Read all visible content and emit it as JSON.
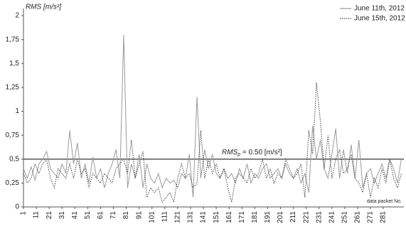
{
  "chart_data": {
    "type": "line",
    "ylabel": "RMS [m/s²]",
    "xlabel": "data packet No.",
    "x": [
      1,
      4,
      7,
      10,
      13,
      16,
      19,
      22,
      25,
      28,
      31,
      34,
      37,
      40,
      43,
      46,
      49,
      52,
      55,
      58,
      61,
      64,
      67,
      70,
      73,
      76,
      79,
      82,
      85,
      88,
      91,
      94,
      97,
      100,
      103,
      106,
      109,
      112,
      115,
      118,
      121,
      124,
      127,
      130,
      133,
      136,
      139,
      142,
      145,
      148,
      151,
      154,
      157,
      160,
      163,
      166,
      169,
      172,
      175,
      178,
      181,
      184,
      187,
      190,
      193,
      196,
      199,
      202,
      205,
      208,
      211,
      214,
      217,
      220,
      223,
      226,
      229,
      232,
      235,
      238,
      241,
      244,
      247,
      250,
      253,
      256,
      259,
      262,
      265,
      268,
      271,
      274,
      277,
      280,
      283,
      286,
      289,
      292,
      295
    ],
    "series": [
      {
        "name": "June 11th, 2012",
        "color": "#9a9a9a",
        "dash": "solid",
        "values": [
          0.4,
          0.3,
          0.42,
          0.28,
          0.45,
          0.5,
          0.58,
          0.4,
          0.35,
          0.3,
          0.45,
          0.35,
          0.8,
          0.45,
          0.67,
          0.3,
          0.45,
          0.25,
          0.52,
          0.3,
          0.4,
          0.2,
          0.35,
          0.45,
          0.6,
          0.3,
          1.8,
          0.2,
          0.45,
          0.3,
          0.55,
          0.2,
          0.45,
          0.3,
          0.25,
          0.35,
          0.2,
          0.3,
          0.25,
          0.28,
          0.2,
          0.35,
          0.3,
          0.55,
          0.1,
          1.15,
          0.3,
          0.6,
          0.4,
          0.55,
          0.35,
          0.3,
          0.4,
          0.3,
          0.35,
          0.25,
          0.4,
          0.3,
          0.45,
          0.25,
          0.35,
          0.3,
          0.4,
          0.45,
          0.3,
          0.35,
          0.4,
          0.3,
          0.45,
          0.35,
          0.3,
          0.4,
          0.25,
          0.35,
          0.15,
          0.85,
          0.5,
          0.7,
          0.4,
          0.3,
          0.55,
          0.82,
          0.3,
          0.6,
          0.35,
          0.65,
          0.3,
          0.7,
          0.2,
          0.35,
          0.4,
          0.25,
          0.35,
          0.45,
          0.3,
          0.5,
          0.4,
          0.25,
          0.5
        ]
      },
      {
        "name": "June 15th, 2012",
        "color": "#444444",
        "dash": "dotted",
        "values": [
          0.35,
          0.25,
          0.3,
          0.45,
          0.35,
          0.45,
          0.5,
          0.3,
          0.2,
          0.4,
          0.35,
          0.3,
          0.45,
          0.3,
          0.5,
          0.35,
          0.4,
          0.2,
          0.35,
          0.3,
          0.25,
          0.35,
          0.3,
          0.25,
          0.4,
          0.45,
          0.5,
          0.35,
          0.7,
          0.3,
          0.45,
          0.58,
          0.1,
          0.2,
          0.15,
          0.2,
          0.05,
          0.1,
          0.15,
          0.05,
          0.3,
          0.45,
          0.3,
          0.35,
          0.2,
          0.25,
          0.8,
          0.3,
          0.5,
          0.35,
          0.45,
          0.3,
          0.4,
          0.2,
          0.05,
          0.3,
          0.35,
          0.3,
          0.25,
          0.4,
          0.3,
          0.35,
          0.5,
          0.3,
          0.4,
          0.25,
          0.35,
          0.3,
          0.5,
          0.4,
          0.3,
          0.35,
          0.45,
          0.1,
          0.8,
          0.55,
          1.3,
          0.9,
          0.4,
          0.75,
          0.3,
          0.5,
          0.6,
          0.35,
          0.4,
          0.55,
          0.3,
          0.25,
          0.15,
          0.35,
          0.1,
          0.3,
          0.2,
          0.4,
          0.25,
          0.5,
          0.3,
          0.2,
          0.35
        ]
      }
    ],
    "reference_line": {
      "value": 0.5,
      "color": "#555555",
      "label_main": "RMS",
      "label_sub": "p",
      "label_rest": " = 0.50 [m/s²]"
    },
    "xlim": [
      1,
      297
    ],
    "xticks": [
      1,
      11,
      21,
      31,
      41,
      51,
      61,
      71,
      81,
      91,
      101,
      111,
      121,
      131,
      141,
      151,
      161,
      171,
      181,
      191,
      201,
      211,
      221,
      231,
      241,
      251,
      261,
      271,
      281
    ],
    "ylim": [
      0,
      2
    ],
    "yticks": [
      0,
      {
        "value": 0.25,
        "label": "0,25"
      },
      {
        "value": 0.5,
        "label": "0,5"
      },
      {
        "value": 0.75,
        "label": "0,75"
      },
      1,
      {
        "value": 1.25,
        "label": "1,25"
      },
      {
        "value": 1.5,
        "label": "1,5"
      },
      {
        "value": 1.75,
        "label": "1,75"
      },
      2
    ],
    "grid": false,
    "legend": "top-right"
  }
}
